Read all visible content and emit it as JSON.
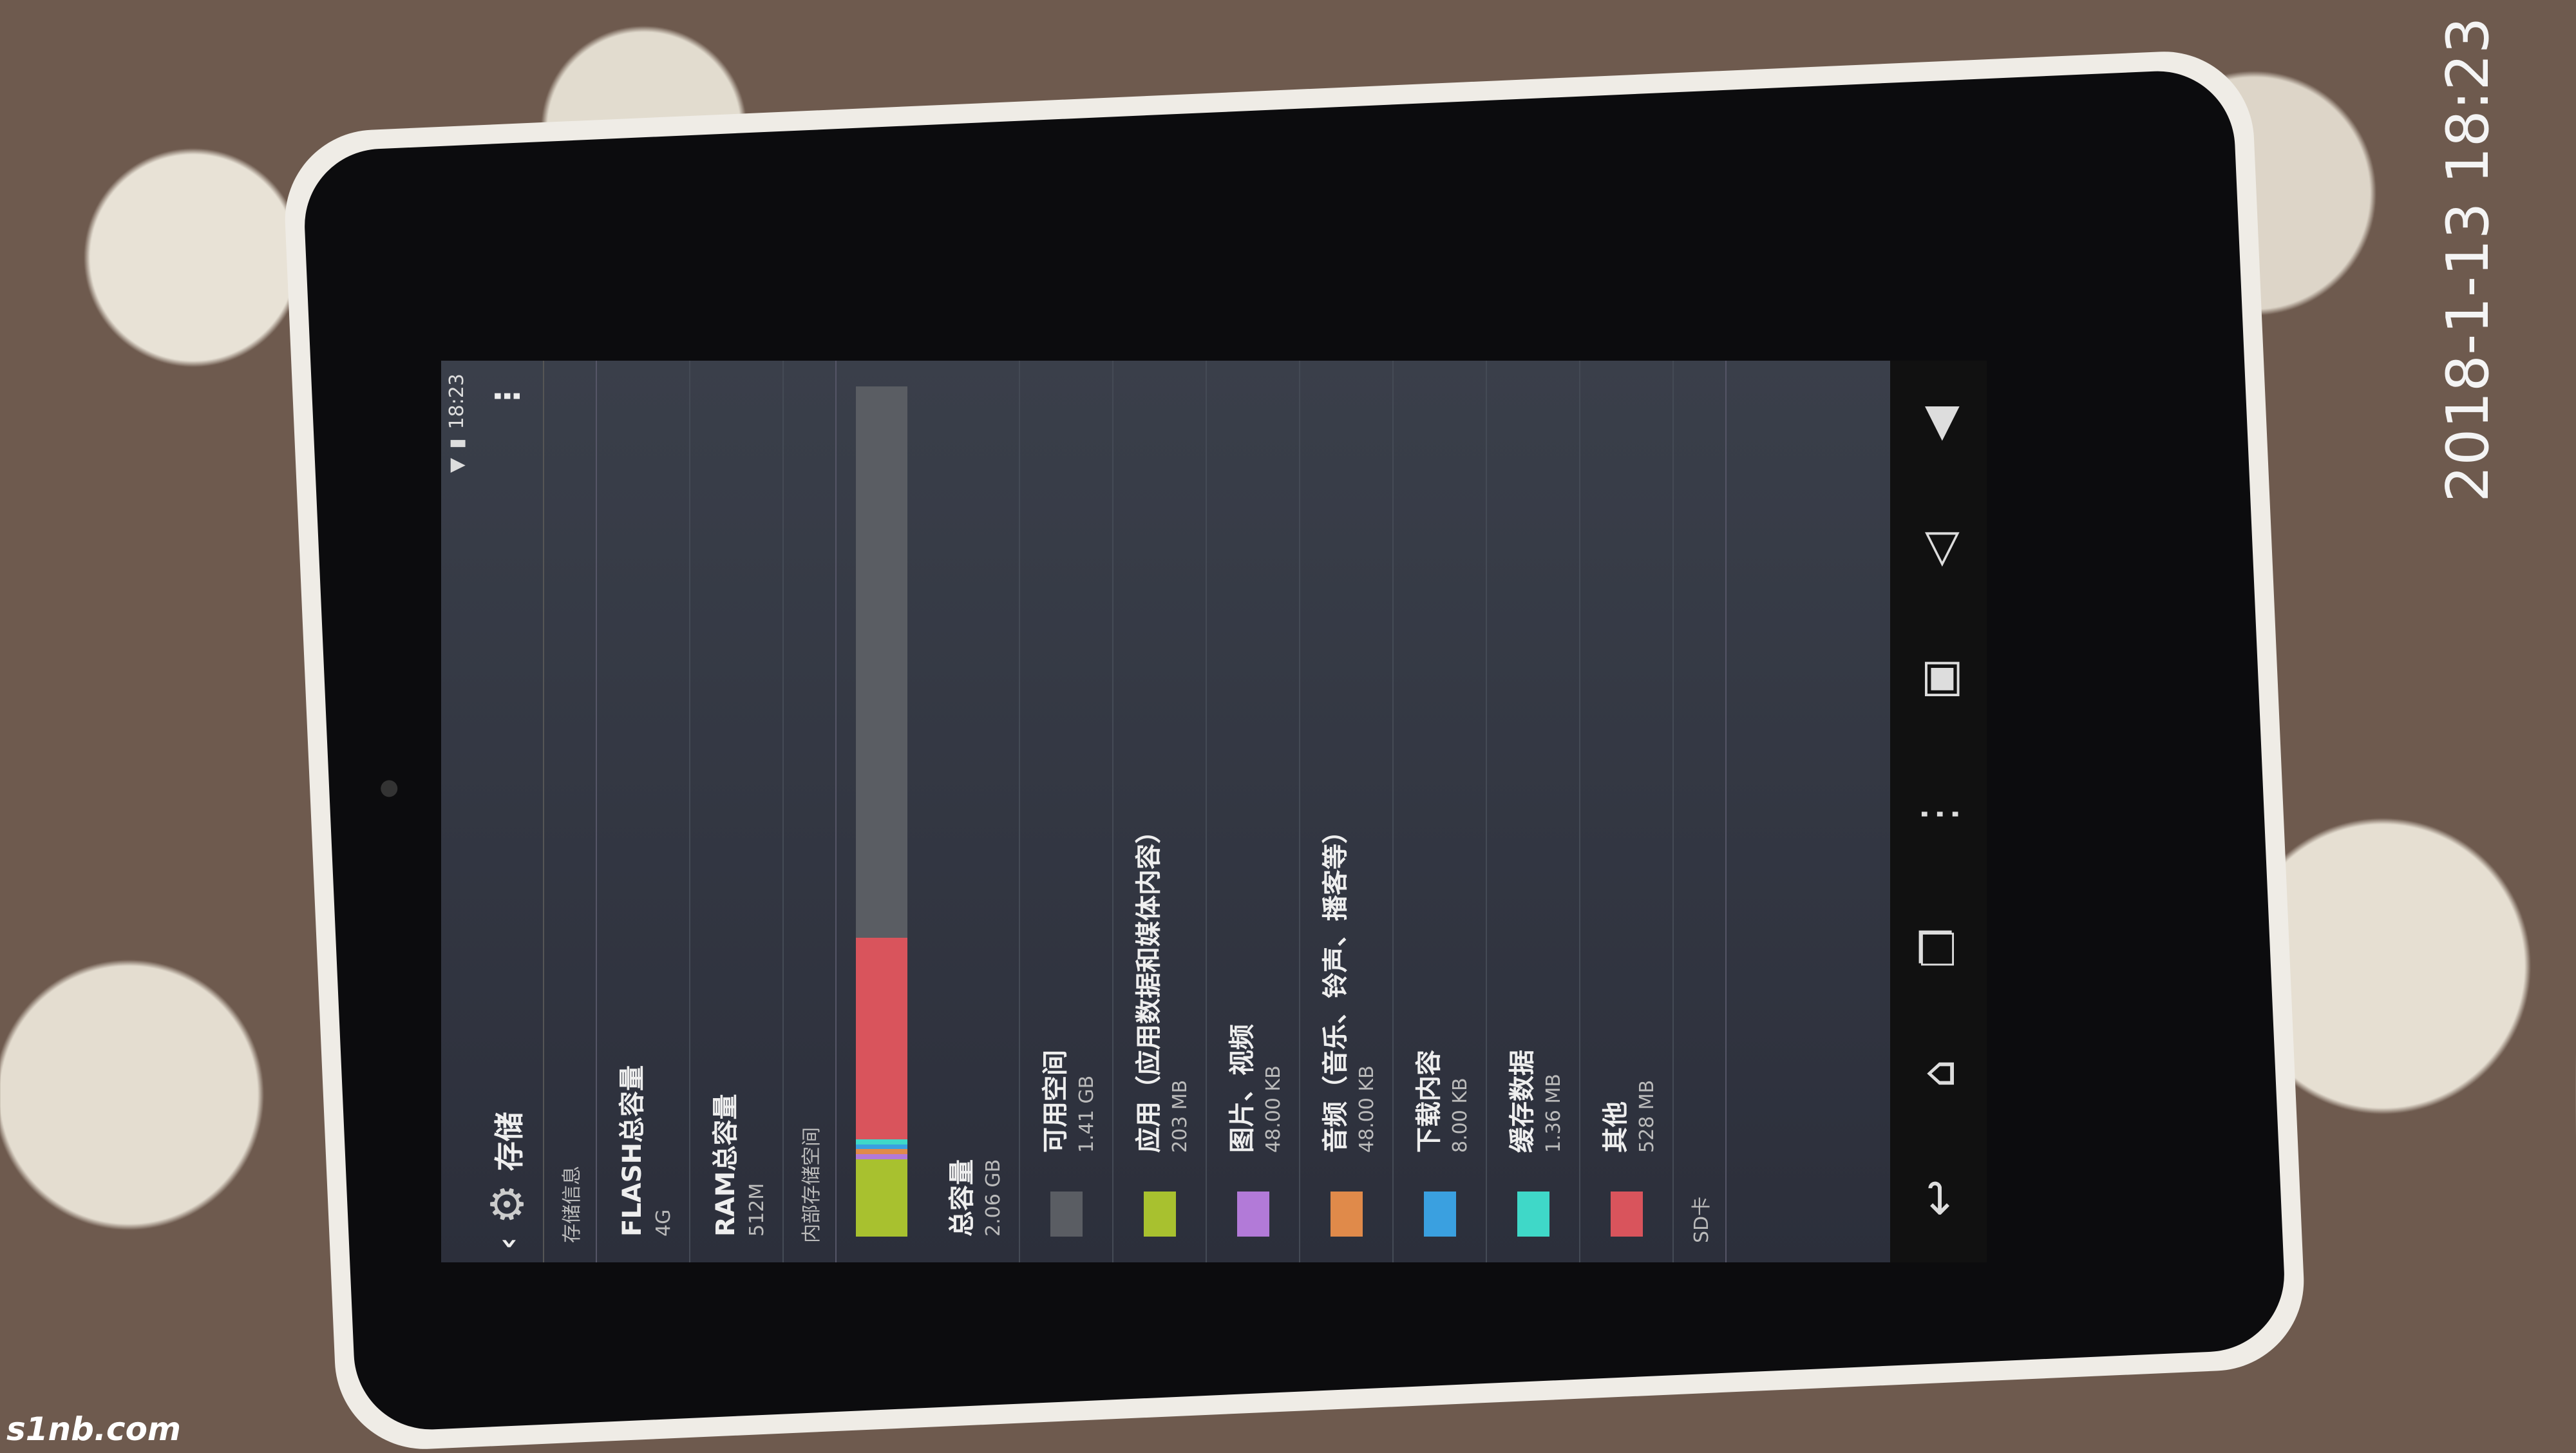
{
  "status": {
    "time": "18:23"
  },
  "header": {
    "title": "存储",
    "menu_icon": "overflow-menu-icon",
    "back_icon": "back-chevron-icon"
  },
  "sections": {
    "storage_info": "存储信息",
    "internal": "内部存储空间",
    "sd": "SD卡"
  },
  "info": [
    {
      "label": "FLASH总容量",
      "value": "4G"
    },
    {
      "label": "RAM总容量",
      "value": "512M"
    }
  ],
  "total": {
    "label": "总容量",
    "value": "2.06 GB"
  },
  "categories": [
    {
      "label": "可用空间",
      "value": "1.41 GB",
      "color": "#5a5d63",
      "mb": 1444
    },
    {
      "label": "应用（应用数据和媒体内容）",
      "value": "203 MB",
      "color": "#a8c12f",
      "mb": 203
    },
    {
      "label": "图片、视频",
      "value": "48.00 KB",
      "color": "#b27ad8",
      "mb": 0.05
    },
    {
      "label": "音频（音乐、铃声、播客等）",
      "value": "48.00 KB",
      "color": "#e08a4a",
      "mb": 0.05
    },
    {
      "label": "下载内容",
      "value": "8.00 KB",
      "color": "#3aa0e0",
      "mb": 0.01
    },
    {
      "label": "缓存数据",
      "value": "1.36 MB",
      "color": "#3fd8c8",
      "mb": 1.36
    },
    {
      "label": "其他",
      "value": "528 MB",
      "color": "#d9545c",
      "mb": 528
    }
  ],
  "photo": {
    "timestamp": "2018-1-13 18:23",
    "watermark": "s1nb.com"
  }
}
